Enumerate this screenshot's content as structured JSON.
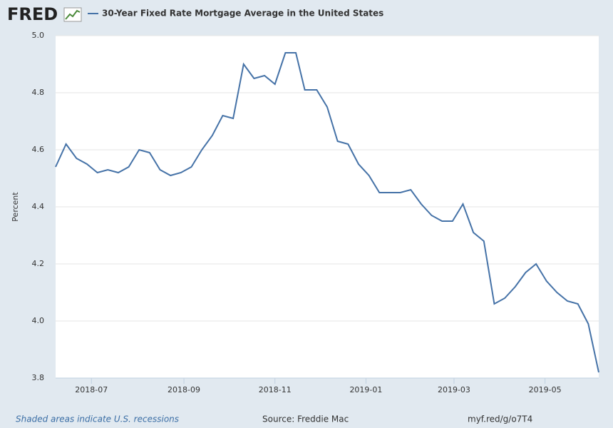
{
  "logo": "FRED",
  "footer": {
    "recessions": "Shaded areas indicate U.S. recessions",
    "source": "Source: Freddie Mac",
    "link": "myf.red/g/o7T4"
  },
  "chart_data": {
    "type": "line",
    "ylabel": "Percent",
    "x": [
      "2018-06-07",
      "2018-06-14",
      "2018-06-21",
      "2018-06-28",
      "2018-07-05",
      "2018-07-12",
      "2018-07-19",
      "2018-07-26",
      "2018-08-02",
      "2018-08-09",
      "2018-08-16",
      "2018-08-23",
      "2018-08-30",
      "2018-09-06",
      "2018-09-13",
      "2018-09-20",
      "2018-09-27",
      "2018-10-04",
      "2018-10-11",
      "2018-10-18",
      "2018-10-25",
      "2018-11-01",
      "2018-11-08",
      "2018-11-15",
      "2018-11-21",
      "2018-11-29",
      "2018-12-06",
      "2018-12-13",
      "2018-12-20",
      "2018-12-27",
      "2019-01-03",
      "2019-01-10",
      "2019-01-17",
      "2019-01-24",
      "2019-01-31",
      "2019-02-07",
      "2019-02-14",
      "2019-02-21",
      "2019-02-28",
      "2019-03-07",
      "2019-03-14",
      "2019-03-21",
      "2019-03-28",
      "2019-04-04",
      "2019-04-11",
      "2019-04-18",
      "2019-04-25",
      "2019-05-02",
      "2019-05-09",
      "2019-05-16",
      "2019-05-23",
      "2019-05-30",
      "2019-06-06"
    ],
    "series": [
      {
        "name": "30-Year Fixed Rate Mortgage Average in the United States",
        "color": "#4572a7",
        "values": [
          4.54,
          4.62,
          4.57,
          4.55,
          4.52,
          4.53,
          4.52,
          4.54,
          4.6,
          4.59,
          4.53,
          4.51,
          4.52,
          4.54,
          4.6,
          4.65,
          4.72,
          4.71,
          4.9,
          4.85,
          4.86,
          4.83,
          4.94,
          4.94,
          4.81,
          4.81,
          4.75,
          4.63,
          4.62,
          4.55,
          4.51,
          4.45,
          4.45,
          4.45,
          4.46,
          4.41,
          4.37,
          4.35,
          4.35,
          4.41,
          4.31,
          4.28,
          4.06,
          4.08,
          4.12,
          4.17,
          4.2,
          4.14,
          4.1,
          4.07,
          4.06,
          3.99,
          3.82
        ]
      }
    ],
    "xlim": [
      "2018-06-07",
      "2019-06-06"
    ],
    "xticks": [
      "2018-07",
      "2018-09",
      "2018-11",
      "2019-01",
      "2019-03",
      "2019-05"
    ],
    "ylim": [
      3.8,
      5.0
    ],
    "yticks": [
      3.8,
      {
        "value": 4,
        "label": "4.0"
      },
      4.2,
      4.4,
      4.6,
      4.8,
      {
        "value": 5,
        "label": "5.0"
      }
    ],
    "grid": true
  }
}
